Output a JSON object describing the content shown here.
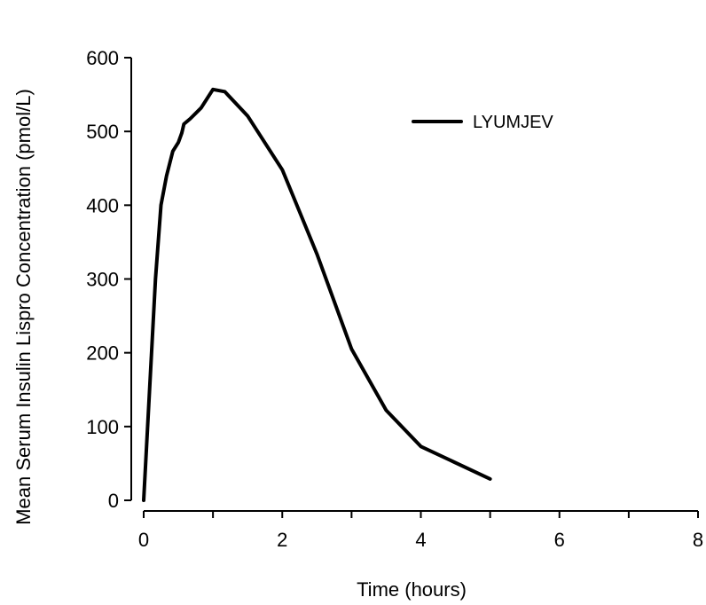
{
  "chart_data": {
    "type": "line",
    "title": "",
    "xlabel": "Time (hours)",
    "ylabel": "Mean Serum Insulin Lispro Concentration (pmol/L)",
    "xlim": [
      0,
      8
    ],
    "ylim": [
      0,
      600
    ],
    "x_ticks": [
      "0",
      "2",
      "4",
      "6",
      "8"
    ],
    "x_tick_values": [
      0,
      2,
      4,
      6,
      8
    ],
    "y_ticks": [
      "0",
      "100",
      "200",
      "300",
      "400",
      "500",
      "600"
    ],
    "y_tick_values": [
      0,
      100,
      200,
      300,
      400,
      500,
      600
    ],
    "grid": false,
    "legend_position": "top-right",
    "series": [
      {
        "name": "LYUMJEV",
        "color": "#000000",
        "x": [
          0,
          0.17,
          0.25,
          0.33,
          0.42,
          0.5,
          0.55,
          0.58,
          0.67,
          0.83,
          1.0,
          1.17,
          1.5,
          2.0,
          2.5,
          3.0,
          3.5,
          4.0,
          5.0
        ],
        "y": [
          0,
          300,
          400,
          440,
          473,
          485,
          498,
          510,
          517,
          532,
          557,
          554,
          521,
          448,
          334,
          205,
          122,
          73,
          29
        ]
      }
    ]
  }
}
